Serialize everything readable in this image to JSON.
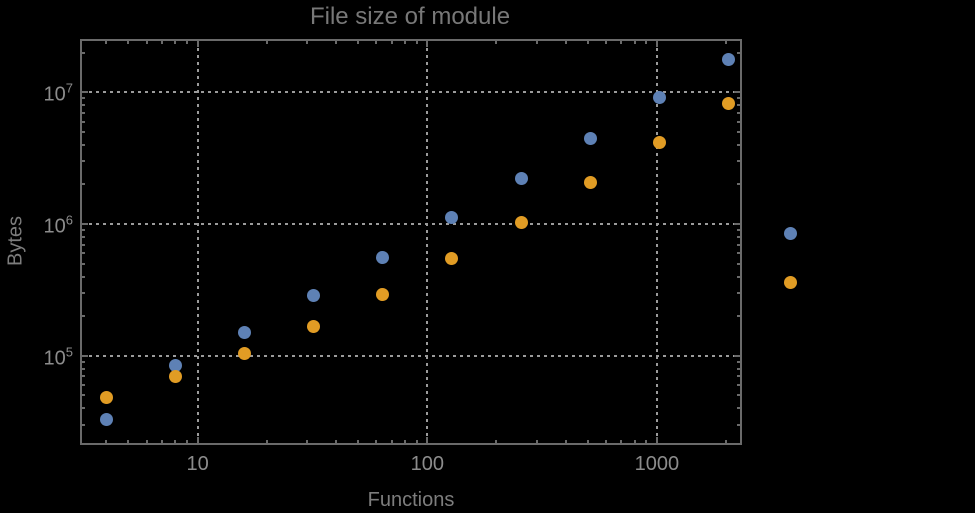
{
  "chart_data": {
    "type": "scatter",
    "title": "File size of module",
    "xlabel": "Functions",
    "ylabel": "Bytes",
    "x_scale": "log10",
    "y_scale": "log10",
    "xlim": [
      3.09,
      2312
    ],
    "ylim": [
      21600,
      25200000
    ],
    "grid": "dotted gray gridlines at decade positions on both axes",
    "legend_position": "none",
    "frame": true,
    "x": [
      4,
      8,
      16,
      32,
      64,
      128,
      256,
      512,
      1024,
      2048,
      3800
    ],
    "series": [
      {
        "name": "series-1-blue",
        "color": "#5E81B5",
        "values": [
          33000,
          84000,
          150000,
          285000,
          560000,
          1120000,
          2200000,
          4500000,
          9200000,
          17800000,
          850000
        ]
      },
      {
        "name": "series-2-orange",
        "color": "#E19C24",
        "values": [
          48000,
          70000,
          104000,
          167000,
          290000,
          545000,
          1030000,
          2070000,
          4200000,
          8300000,
          360000
        ]
      }
    ],
    "x_ticks": [
      {
        "value": 10,
        "label": "10"
      },
      {
        "value": 100,
        "label": "100"
      },
      {
        "value": 1000,
        "label": "1000"
      }
    ],
    "y_ticks": [
      {
        "value": 100000,
        "label": "10^5",
        "base": "10",
        "exponent": "5"
      },
      {
        "value": 1000000,
        "label": "10^6",
        "base": "10",
        "exponent": "6"
      },
      {
        "value": 10000000,
        "label": "10^7",
        "base": "10",
        "exponent": "7"
      }
    ],
    "note": "rightmost pair of points (~3800 functions) is drawn outside the right edge of the plot frame"
  },
  "colors": {
    "background": "#000000",
    "frame": "#6a6a6a",
    "gridline": "#9b9b9b",
    "tick_label": "#8c8c8c",
    "title_text": "#787878",
    "axis_label": "#7d7d7d",
    "series_blue": "#5E81B5",
    "series_orange": "#E19C24"
  }
}
